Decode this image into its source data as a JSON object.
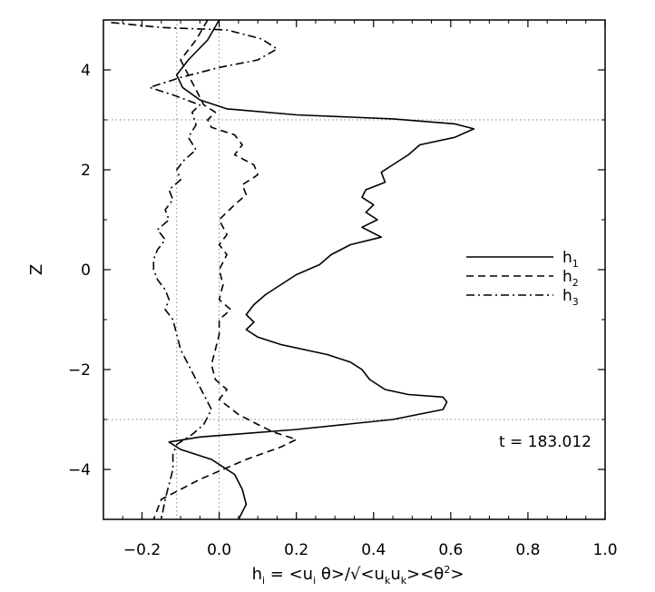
{
  "chart_data": {
    "type": "line",
    "title": "",
    "xlabel": {
      "main": "h",
      "main_sub": "i",
      "rest": " = <u",
      "rest_sub": "i",
      "theta": " θ>/√<u",
      "k1": "k",
      "u2": "u",
      "k2": "k",
      "end": "><θ",
      "sup": "2",
      "close": ">"
    },
    "ylabel": "Z",
    "xlim": [
      -0.3,
      1.0
    ],
    "ylim": [
      -5,
      5
    ],
    "xticks": [
      -0.2,
      0.0,
      0.2,
      0.4,
      0.6,
      0.8,
      1.0
    ],
    "xtick_labels": [
      "−0.2",
      "0.0",
      "0.2",
      "0.4",
      "0.6",
      "0.8",
      "1.0"
    ],
    "yticks": [
      -4,
      -2,
      0,
      2,
      4
    ],
    "ytick_labels": [
      "−4",
      "−2",
      "0",
      "2",
      "4"
    ],
    "reference_lines": {
      "vertical_x": [
        -0.11,
        0.0
      ],
      "horizontal_y": [
        3.0,
        -3.0
      ]
    },
    "legend": {
      "position": "center-right",
      "entries": [
        {
          "name": "h",
          "sub": "1",
          "style": "solid"
        },
        {
          "name": "h",
          "sub": "2",
          "style": "dashed"
        },
        {
          "name": "h",
          "sub": "3",
          "style": "dashdot"
        }
      ]
    },
    "annotation": "t = 183.012",
    "series": [
      {
        "name": "h1",
        "style": "solid",
        "points": [
          [
            0.0,
            5.0
          ],
          [
            -0.03,
            4.6
          ],
          [
            -0.08,
            4.2
          ],
          [
            -0.11,
            3.9
          ],
          [
            -0.095,
            3.65
          ],
          [
            -0.05,
            3.4
          ],
          [
            0.02,
            3.22
          ],
          [
            0.2,
            3.1
          ],
          [
            0.45,
            3.02
          ],
          [
            0.61,
            2.92
          ],
          [
            0.66,
            2.82
          ],
          [
            0.61,
            2.65
          ],
          [
            0.52,
            2.5
          ],
          [
            0.49,
            2.3
          ],
          [
            0.45,
            2.1
          ],
          [
            0.42,
            1.95
          ],
          [
            0.43,
            1.75
          ],
          [
            0.38,
            1.6
          ],
          [
            0.37,
            1.45
          ],
          [
            0.4,
            1.3
          ],
          [
            0.38,
            1.15
          ],
          [
            0.41,
            1.0
          ],
          [
            0.37,
            0.85
          ],
          [
            0.42,
            0.65
          ],
          [
            0.34,
            0.5
          ],
          [
            0.29,
            0.3
          ],
          [
            0.26,
            0.1
          ],
          [
            0.2,
            -0.1
          ],
          [
            0.16,
            -0.3
          ],
          [
            0.12,
            -0.5
          ],
          [
            0.09,
            -0.7
          ],
          [
            0.07,
            -0.9
          ],
          [
            0.09,
            -1.05
          ],
          [
            0.07,
            -1.2
          ],
          [
            0.1,
            -1.35
          ],
          [
            0.16,
            -1.5
          ],
          [
            0.28,
            -1.7
          ],
          [
            0.34,
            -1.85
          ],
          [
            0.37,
            -2.0
          ],
          [
            0.39,
            -2.2
          ],
          [
            0.43,
            -2.4
          ],
          [
            0.49,
            -2.5
          ],
          [
            0.58,
            -2.55
          ],
          [
            0.59,
            -2.65
          ],
          [
            0.58,
            -2.8
          ],
          [
            0.45,
            -3.0
          ],
          [
            0.2,
            -3.2
          ],
          [
            -0.05,
            -3.35
          ],
          [
            -0.13,
            -3.45
          ],
          [
            -0.1,
            -3.6
          ],
          [
            -0.02,
            -3.8
          ],
          [
            0.04,
            -4.1
          ],
          [
            0.06,
            -4.4
          ],
          [
            0.07,
            -4.7
          ],
          [
            0.05,
            -5.0
          ]
        ]
      },
      {
        "name": "h2",
        "style": "dashed",
        "points": [
          [
            -0.03,
            5.0
          ],
          [
            -0.06,
            4.6
          ],
          [
            -0.1,
            4.2
          ],
          [
            -0.08,
            3.9
          ],
          [
            -0.06,
            3.6
          ],
          [
            -0.04,
            3.3
          ],
          [
            -0.01,
            3.15
          ],
          [
            -0.03,
            3.0
          ],
          [
            -0.02,
            2.85
          ],
          [
            0.04,
            2.7
          ],
          [
            0.06,
            2.5
          ],
          [
            0.04,
            2.3
          ],
          [
            0.09,
            2.1
          ],
          [
            0.1,
            1.9
          ],
          [
            0.06,
            1.7
          ],
          [
            0.07,
            1.5
          ],
          [
            0.04,
            1.3
          ],
          [
            0.0,
            1.0
          ],
          [
            0.02,
            0.7
          ],
          [
            0.0,
            0.5
          ],
          [
            0.02,
            0.3
          ],
          [
            0.0,
            0.0
          ],
          [
            0.01,
            -0.3
          ],
          [
            0.0,
            -0.6
          ],
          [
            0.03,
            -0.8
          ],
          [
            0.0,
            -1.0
          ],
          [
            0.0,
            -1.3
          ],
          [
            -0.01,
            -1.6
          ],
          [
            -0.02,
            -1.9
          ],
          [
            -0.01,
            -2.2
          ],
          [
            0.02,
            -2.4
          ],
          [
            0.0,
            -2.6
          ],
          [
            0.05,
            -2.9
          ],
          [
            0.1,
            -3.1
          ],
          [
            0.14,
            -3.25
          ],
          [
            0.2,
            -3.4
          ],
          [
            0.16,
            -3.55
          ],
          [
            0.07,
            -3.8
          ],
          [
            -0.05,
            -4.2
          ],
          [
            -0.15,
            -4.6
          ],
          [
            -0.17,
            -5.0
          ]
        ]
      },
      {
        "name": "h3",
        "style": "dashdot",
        "points": [
          [
            -0.28,
            4.95
          ],
          [
            -0.15,
            4.85
          ],
          [
            0.02,
            4.8
          ],
          [
            0.11,
            4.62
          ],
          [
            0.15,
            4.42
          ],
          [
            0.1,
            4.2
          ],
          [
            0.0,
            4.05
          ],
          [
            -0.1,
            3.85
          ],
          [
            -0.18,
            3.65
          ],
          [
            -0.12,
            3.5
          ],
          [
            -0.05,
            3.3
          ],
          [
            -0.07,
            3.15
          ],
          [
            -0.06,
            2.9
          ],
          [
            -0.08,
            2.65
          ],
          [
            -0.06,
            2.4
          ],
          [
            -0.09,
            2.2
          ],
          [
            -0.11,
            2.0
          ],
          [
            -0.1,
            1.8
          ],
          [
            -0.13,
            1.6
          ],
          [
            -0.12,
            1.4
          ],
          [
            -0.14,
            1.2
          ],
          [
            -0.13,
            1.0
          ],
          [
            -0.16,
            0.8
          ],
          [
            -0.14,
            0.6
          ],
          [
            -0.16,
            0.4
          ],
          [
            -0.17,
            0.2
          ],
          [
            -0.17,
            0.0
          ],
          [
            -0.16,
            -0.2
          ],
          [
            -0.14,
            -0.4
          ],
          [
            -0.13,
            -0.6
          ],
          [
            -0.14,
            -0.8
          ],
          [
            -0.12,
            -1.0
          ],
          [
            -0.11,
            -1.3
          ],
          [
            -0.1,
            -1.6
          ],
          [
            -0.08,
            -1.9
          ],
          [
            -0.06,
            -2.2
          ],
          [
            -0.04,
            -2.5
          ],
          [
            -0.02,
            -2.8
          ],
          [
            -0.04,
            -3.1
          ],
          [
            -0.07,
            -3.3
          ],
          [
            -0.11,
            -3.5
          ],
          [
            -0.12,
            -3.7
          ],
          [
            -0.12,
            -4.0
          ],
          [
            -0.13,
            -4.3
          ],
          [
            -0.14,
            -4.6
          ],
          [
            -0.15,
            -5.0
          ]
        ]
      }
    ]
  }
}
